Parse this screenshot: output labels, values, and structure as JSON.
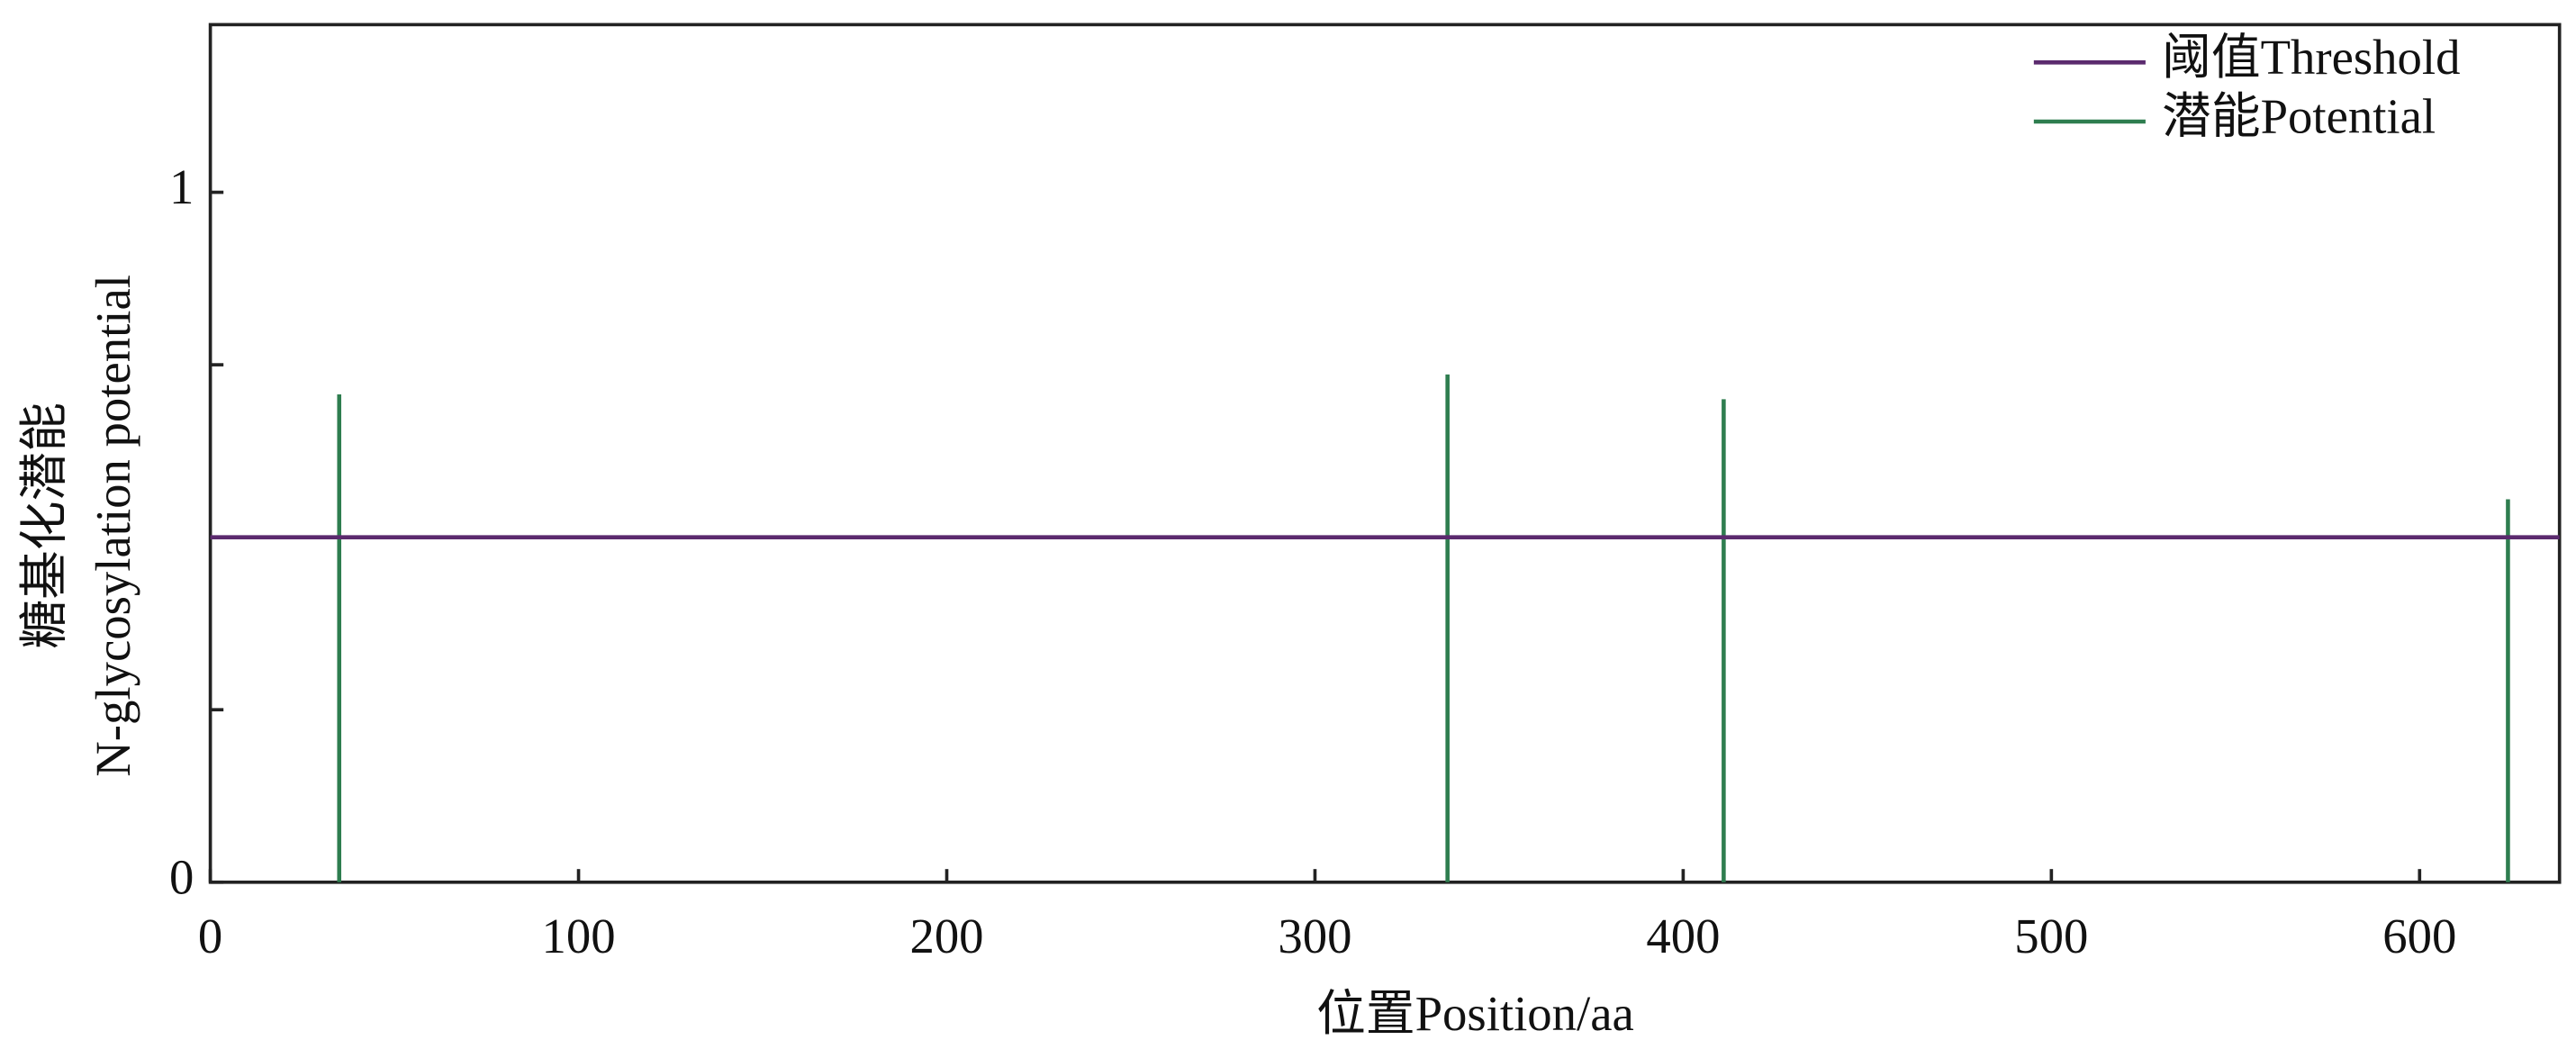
{
  "chart_data": {
    "type": "stem",
    "xlabel": "位置Position/aa",
    "ylabel": [
      "糖基化潜能",
      "N-glycosylation potential"
    ],
    "xlim": [
      0,
      638
    ],
    "ylim": [
      0,
      1.243
    ],
    "xticks": [
      0,
      100,
      200,
      300,
      400,
      500,
      600
    ],
    "yticks": [
      0,
      1
    ],
    "minor_yticks": [
      0.25,
      0.5,
      0.75
    ],
    "legend": "upper right",
    "threshold": {
      "name": "阈值Threshold",
      "color": "#5b2a6e",
      "value": 0.5
    },
    "series": [
      {
        "name": "潜能Potential",
        "color": "#2e7d4f",
        "x": [
          35,
          336,
          411,
          624
        ],
        "values": [
          0.707,
          0.736,
          0.7,
          0.555
        ]
      }
    ]
  }
}
